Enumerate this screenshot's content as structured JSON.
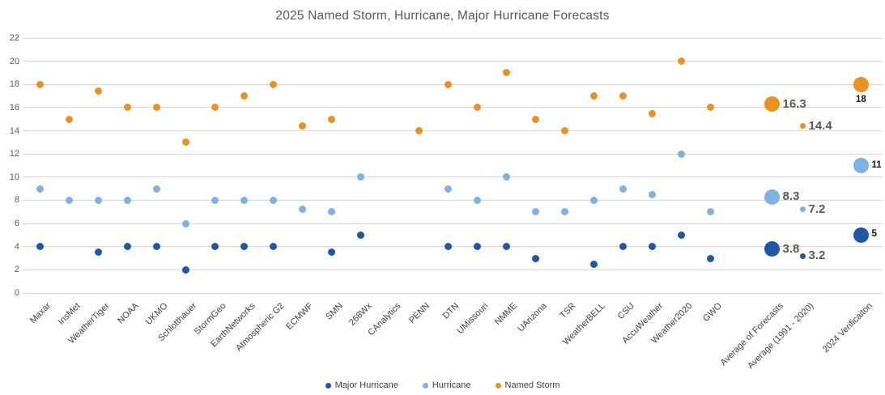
{
  "title": "2025 Named Storm, Hurricane, Major Hurricane Forecasts",
  "colors": {
    "named_storm": "#EA9220",
    "hurricane": "#7EB2E2",
    "major_hurricane": "#1F57A6",
    "grid": "#D9D9D9",
    "axis_text": "#595959",
    "x_label_text": "#404040"
  },
  "legend": {
    "items": [
      {
        "label": "Major Hurricane",
        "color_key": "major_hurricane"
      },
      {
        "label": "Hurricane",
        "color_key": "hurricane"
      },
      {
        "label": "Named Storm",
        "color_key": "named_storm"
      }
    ]
  },
  "chart_data": {
    "type": "scatter",
    "title": "2025 Named Storm, Hurricane, Major Hurricane Forecasts",
    "ylim": [
      0,
      22
    ],
    "ytick_step": 2,
    "grid": true,
    "legend_position": "bottom",
    "series_names": [
      "Named Storm",
      "Hurricane",
      "Major Hurricane"
    ],
    "categories": [
      {
        "label": "Maxar",
        "named_storm": 18,
        "hurricane": 9,
        "major_hurricane": 4
      },
      {
        "label": "InsMet",
        "named_storm": 15,
        "hurricane": 8,
        "major_hurricane": null
      },
      {
        "label": "WeatherTiger",
        "named_storm": 17.4,
        "hurricane": 8,
        "major_hurricane": 3.5
      },
      {
        "label": "NOAA",
        "named_storm": 16,
        "hurricane": 8,
        "major_hurricane": 4
      },
      {
        "label": "UKMO",
        "named_storm": 16,
        "hurricane": 9,
        "major_hurricane": 4
      },
      {
        "label": "Schlotthauer",
        "named_storm": 13,
        "hurricane": 6,
        "major_hurricane": 2
      },
      {
        "label": "StormGeo",
        "named_storm": 16,
        "hurricane": 8,
        "major_hurricane": 4
      },
      {
        "label": "EarthNetworks",
        "named_storm": 17,
        "hurricane": 8,
        "major_hurricane": 4
      },
      {
        "label": "Atmospheric G2",
        "named_storm": 18,
        "hurricane": 8,
        "major_hurricane": 4
      },
      {
        "label": "ECMWF",
        "named_storm": 14.4,
        "hurricane": 7.2,
        "major_hurricane": null
      },
      {
        "label": "SMN",
        "named_storm": 15,
        "hurricane": 7,
        "major_hurricane": 3.5
      },
      {
        "label": "268Wx",
        "named_storm": null,
        "hurricane": 10,
        "major_hurricane": 5
      },
      {
        "label": "CAnalytics",
        "named_storm": null,
        "hurricane": null,
        "major_hurricane": null
      },
      {
        "label": "PENN",
        "named_storm": 14,
        "hurricane": null,
        "major_hurricane": null
      },
      {
        "label": "DTN",
        "named_storm": 18,
        "hurricane": 9,
        "major_hurricane": 4
      },
      {
        "label": "UMissouri",
        "named_storm": 16,
        "hurricane": 8,
        "major_hurricane": 4
      },
      {
        "label": "NMME",
        "named_storm": 19,
        "hurricane": 10,
        "major_hurricane": 4
      },
      {
        "label": "UArizona",
        "named_storm": 15,
        "hurricane": 7,
        "major_hurricane": 3
      },
      {
        "label": "TSR",
        "named_storm": 14,
        "hurricane": 7,
        "major_hurricane": null
      },
      {
        "label": "WeatherBELL",
        "named_storm": 17,
        "hurricane": 8,
        "major_hurricane": 2.5
      },
      {
        "label": "CSU",
        "named_storm": 17,
        "hurricane": 9,
        "major_hurricane": 4
      },
      {
        "label": "AccuWeather",
        "named_storm": 15.5,
        "hurricane": 8.5,
        "major_hurricane": 4
      },
      {
        "label": "Weather2020",
        "named_storm": 20,
        "hurricane": 12,
        "major_hurricane": 5
      },
      {
        "label": "GWO",
        "named_storm": 16,
        "hurricane": 7,
        "major_hurricane": 3
      },
      {
        "label": "Average of Forecasts",
        "named_storm": 16.3,
        "hurricane": 8.3,
        "major_hurricane": 3.8,
        "dot_size": "big",
        "label_style": "gray",
        "value_labels": {
          "named_storm": {
            "text": "16.3",
            "pos": "right"
          },
          "hurricane": {
            "text": "8.3",
            "pos": "right"
          },
          "major_hurricane": {
            "text": "3.8",
            "pos": "right"
          }
        }
      },
      {
        "label": "Average (1991 - 2020)",
        "named_storm": 14.4,
        "hurricane": 7.2,
        "major_hurricane": 3.2,
        "dot_size": "small",
        "label_style": "gray",
        "value_labels": {
          "named_storm": {
            "text": "14.4",
            "pos": "right"
          },
          "hurricane": {
            "text": "7.2",
            "pos": "right"
          },
          "major_hurricane": {
            "text": "3.2",
            "pos": "right"
          }
        }
      },
      {
        "label": "2024 Verificaiton",
        "named_storm": 18,
        "hurricane": 11,
        "major_hurricane": 5,
        "dot_size": "big",
        "label_style": "black",
        "value_labels": {
          "named_storm": {
            "text": "18",
            "pos": "below"
          },
          "hurricane": {
            "text": "11",
            "pos": "right"
          },
          "major_hurricane": {
            "text": "5",
            "pos": "right"
          }
        }
      }
    ]
  }
}
